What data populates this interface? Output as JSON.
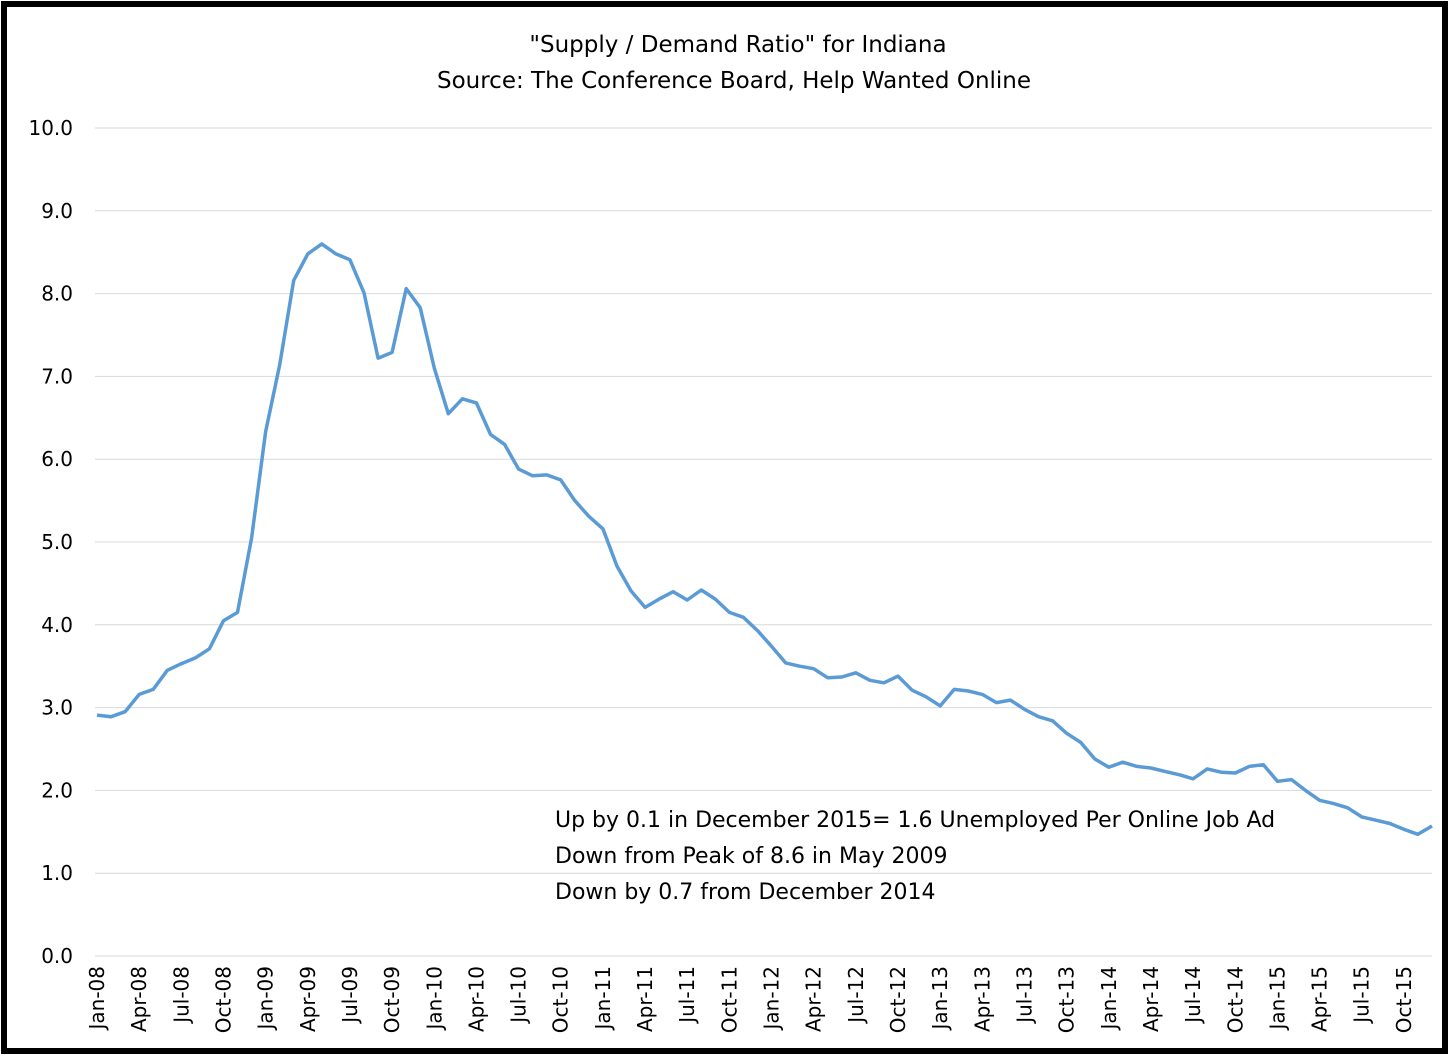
{
  "chart_data": {
    "type": "line",
    "title": "\"Supply / Demand Ratio\" for Indiana",
    "subtitle": "Source: The Conference Board, Help Wanted Online",
    "annotations": [
      "Up by 0.1 in December 2015= 1.6 Unemployed Per Online Job Ad",
      "Down from Peak of 8.6 in May 2009",
      "Down by 0.7 from December 2014"
    ],
    "categories": [
      "Jan-08",
      null,
      null,
      "Apr-08",
      null,
      null,
      "Jul-08",
      null,
      null,
      "Oct-08",
      null,
      null,
      "Jan-09",
      null,
      null,
      "Apr-09",
      null,
      null,
      "Jul-09",
      null,
      null,
      "Oct-09",
      null,
      null,
      "Jan-10",
      null,
      null,
      "Apr-10",
      null,
      null,
      "Jul-10",
      null,
      null,
      "Oct-10",
      null,
      null,
      "Jan-11",
      null,
      null,
      "Apr-11",
      null,
      null,
      "Jul-11",
      null,
      null,
      "Oct-11",
      null,
      null,
      "Jan-12",
      null,
      null,
      "Apr-12",
      null,
      null,
      "Jul-12",
      null,
      null,
      "Oct-12",
      null,
      null,
      "Jan-13",
      null,
      null,
      "Apr-13",
      null,
      null,
      "Jul-13",
      null,
      null,
      "Oct-13",
      null,
      null,
      "Jan-14",
      null,
      null,
      "Apr-14",
      null,
      null,
      "Jul-14",
      null,
      null,
      "Oct-14",
      null,
      null,
      "Jan-15",
      null,
      null,
      "Apr-15",
      null,
      null,
      "Jul-15",
      null,
      null,
      "Oct-15",
      null,
      null
    ],
    "series": [
      {
        "name": "Supply / Demand Ratio",
        "color": "#5b9bd5",
        "values": [
          2.91,
          2.89,
          2.95,
          3.16,
          3.22,
          3.45,
          3.53,
          3.6,
          3.71,
          4.05,
          4.15,
          5.05,
          6.33,
          7.14,
          8.16,
          8.48,
          8.6,
          8.48,
          8.41,
          8.01,
          7.22,
          7.29,
          8.06,
          7.83,
          7.1,
          6.55,
          6.73,
          6.68,
          6.3,
          6.18,
          5.88,
          5.8,
          5.81,
          5.75,
          5.5,
          5.31,
          5.16,
          4.71,
          4.41,
          4.21,
          4.31,
          4.4,
          4.3,
          4.42,
          4.31,
          4.15,
          4.09,
          3.93,
          3.74,
          3.54,
          3.5,
          3.47,
          3.36,
          3.37,
          3.42,
          3.33,
          3.3,
          3.38,
          3.21,
          3.13,
          3.02,
          3.22,
          3.2,
          3.16,
          3.06,
          3.09,
          2.98,
          2.89,
          2.84,
          2.69,
          2.58,
          2.38,
          2.28,
          2.34,
          2.29,
          2.27,
          2.23,
          2.19,
          2.14,
          2.26,
          2.22,
          2.21,
          2.29,
          2.31,
          2.11,
          2.13,
          2.0,
          1.88,
          1.84,
          1.79,
          1.68,
          1.64,
          1.6,
          1.53,
          1.47,
          1.57
        ]
      }
    ],
    "ylim": [
      0,
      10
    ],
    "yticks": [
      {
        "value": 0,
        "label": "0.0"
      },
      {
        "value": 1,
        "label": "1.0"
      },
      {
        "value": 2,
        "label": "2.0"
      },
      {
        "value": 3,
        "label": "3.0"
      },
      {
        "value": 4,
        "label": "4.0"
      },
      {
        "value": 5,
        "label": "5.0"
      },
      {
        "value": 6,
        "label": "6.0"
      },
      {
        "value": 7,
        "label": "7.0"
      },
      {
        "value": 8,
        "label": "8.0"
      },
      {
        "value": 9,
        "label": "9.0"
      },
      {
        "value": 10,
        "label": "10.0"
      }
    ],
    "grid": true
  }
}
